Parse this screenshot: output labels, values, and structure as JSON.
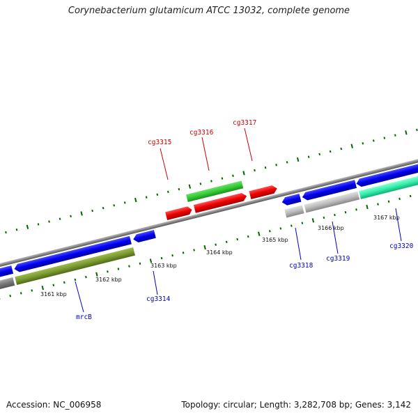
{
  "title": "Corynebacterium glutamicum ATCC 13032, complete genome",
  "accession_label": "Accession: NC_006958",
  "summary_label": "Topology: circular; Length: 3,282,708 bp; Genes: 3,142",
  "colors": {
    "forward_label": "#cc0000",
    "reverse_label": "#0000cc",
    "axis": "#888888",
    "ticks": "#006600"
  },
  "kbp_ticks": [
    "3161 kbp",
    "3162 kbp",
    "3163 kbp",
    "3164 kbp",
    "3165 kbp",
    "3166 kbp",
    "3167 kbp"
  ],
  "gene_labels": {
    "cg3315": "cg3315",
    "cg3316": "cg3316",
    "cg3317": "cg3317",
    "cg3314": "cg3314",
    "mrcB": "mrcB",
    "cg3318": "cg3318",
    "cg3319": "cg3319",
    "cg3320": "cg3320"
  }
}
